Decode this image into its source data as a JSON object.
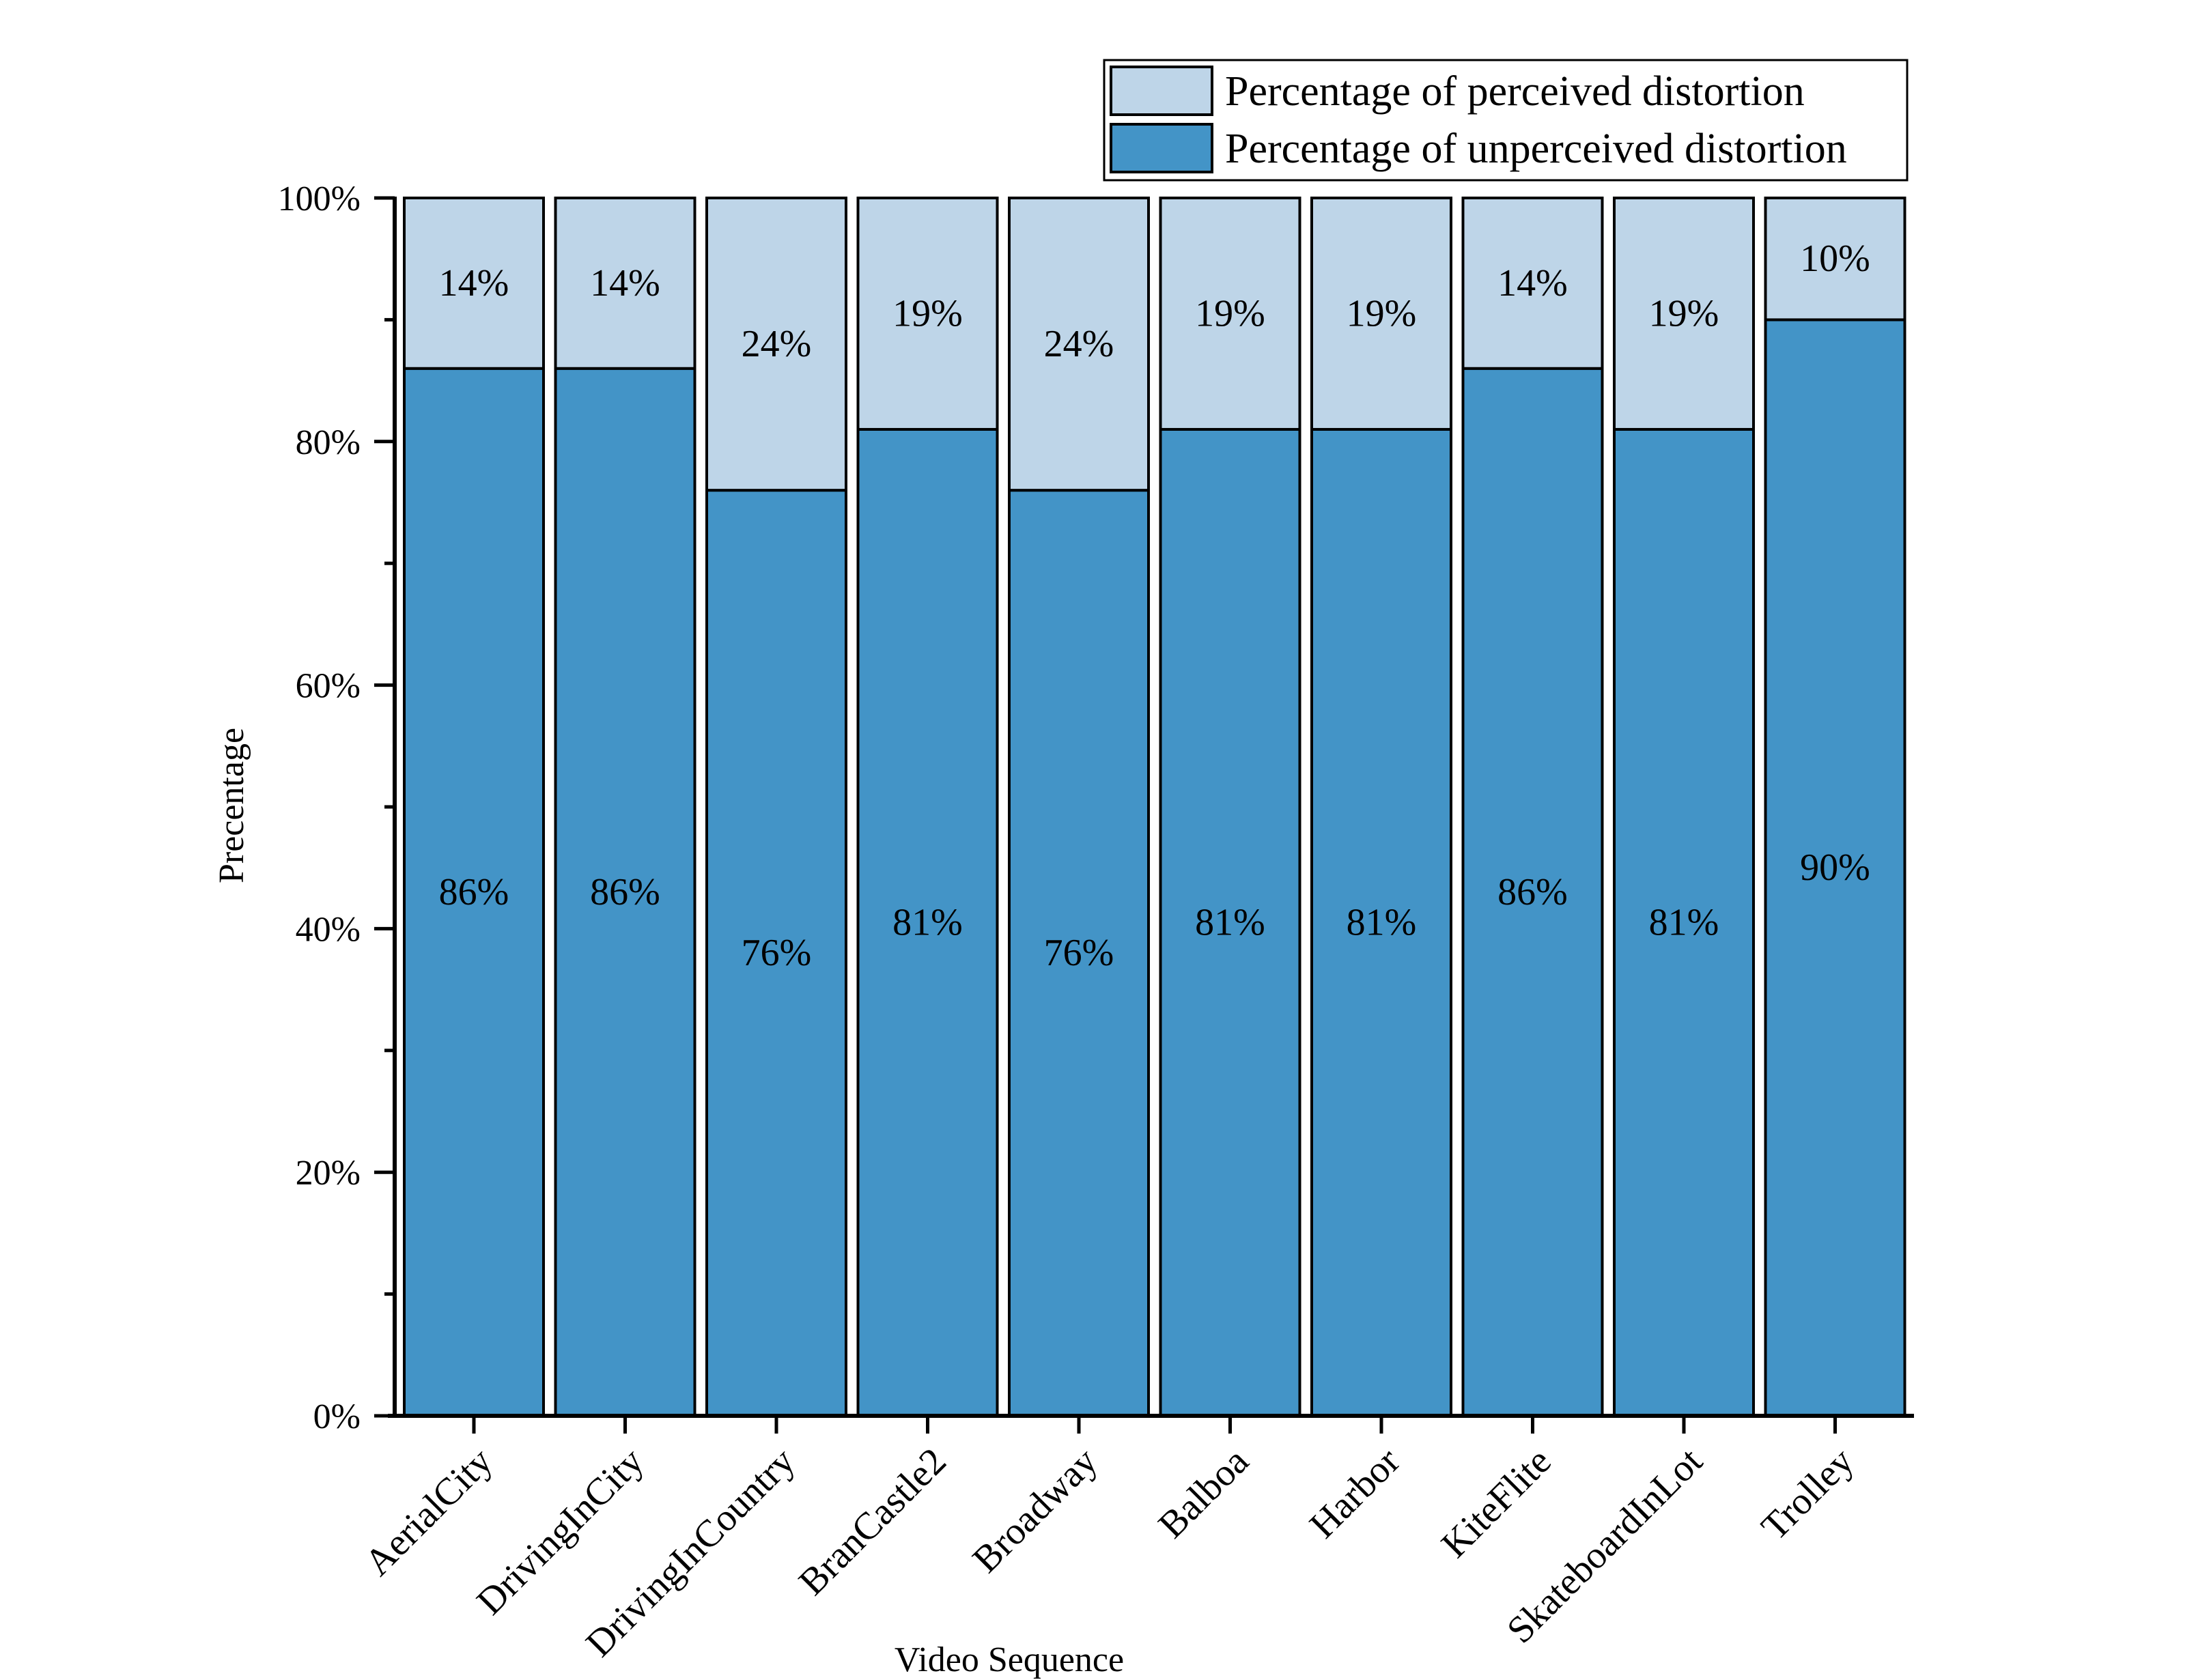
{
  "colors": {
    "perceived": "#bed5e8",
    "unperceived": "#4394c7",
    "axis": "#000000"
  },
  "chart_data": {
    "type": "bar",
    "stacked": true,
    "xlabel": "Video Sequence",
    "ylabel": "Precentage",
    "ylim": [
      0,
      100
    ],
    "yticks": [
      "0%",
      "20%",
      "40%",
      "60%",
      "80%",
      "100%"
    ],
    "categories": [
      "AerialCity",
      "DrivingInCity",
      "DrivingInCountry",
      "BranCastle2",
      "Broadway",
      "Balboa",
      "Harbor",
      "KiteFlite",
      "SkateboardInLot",
      "Trolley"
    ],
    "series": [
      {
        "name": "Percentage of unperceived distortion",
        "values": [
          86,
          86,
          76,
          81,
          76,
          81,
          81,
          86,
          81,
          90
        ],
        "labels": [
          "86%",
          "86%",
          "76%",
          "81%",
          "76%",
          "81%",
          "81%",
          "86%",
          "81%",
          "90%"
        ]
      },
      {
        "name": "Percentage of perceived distortion",
        "values": [
          14,
          14,
          24,
          19,
          24,
          19,
          19,
          14,
          19,
          10
        ],
        "labels": [
          "14%",
          "14%",
          "24%",
          "19%",
          "24%",
          "19%",
          "19%",
          "14%",
          "19%",
          "10%"
        ]
      }
    ],
    "legend": {
      "position": "top-right",
      "items": [
        "Percentage of perceived distortion",
        "Percentage of unperceived distortion"
      ]
    }
  }
}
